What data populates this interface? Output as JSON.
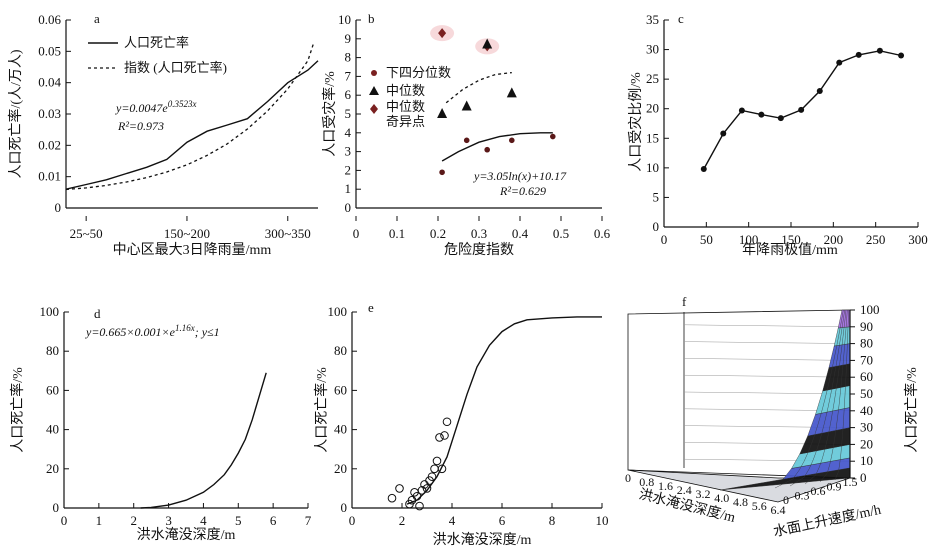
{
  "chart_data": [
    {
      "panel": "a",
      "type": "line",
      "xlabel": "中心区最大3日降雨量/mm",
      "ylabel": "人口死亡率/(人/万人)",
      "x_ticks": [
        "25~50",
        "150~200",
        "300~350"
      ],
      "x_tick_positions": [
        1,
        6,
        11
      ],
      "xlim": [
        0,
        12.5
      ],
      "ylim": [
        0,
        0.06
      ],
      "y_ticks": [
        0,
        0.01,
        0.02,
        0.03,
        0.04,
        0.05,
        0.06
      ],
      "series": [
        {
          "name": "人口死亡率",
          "style": "solid",
          "x": [
            0,
            1,
            2,
            3,
            4,
            5,
            6,
            7,
            8,
            9,
            10,
            11,
            12,
            12.5
          ],
          "y": [
            0.006,
            0.0075,
            0.009,
            0.011,
            0.013,
            0.0155,
            0.021,
            0.0245,
            0.0265,
            0.0285,
            0.034,
            0.04,
            0.044,
            0.047
          ]
        },
        {
          "name": "指数 (人口死亡率)",
          "style": "dashed",
          "x": [
            0,
            1,
            2,
            3,
            4,
            5,
            6,
            7,
            8,
            9,
            10,
            11,
            12,
            12.3
          ],
          "y": [
            0.0059,
            0.0064,
            0.0072,
            0.0083,
            0.0097,
            0.0115,
            0.0138,
            0.0168,
            0.0205,
            0.0252,
            0.031,
            0.038,
            0.047,
            0.053
          ]
        }
      ],
      "equation": "y=0.0047e",
      "equation_exp": "0.3523x",
      "r2": "R²=0.973"
    },
    {
      "panel": "b",
      "type": "scatter",
      "xlabel": "危险度指数",
      "ylabel": "人口受灾率/%",
      "xlim": [
        0,
        0.6
      ],
      "ylim": [
        0,
        10
      ],
      "x_ticks": [
        0,
        0.1,
        0.2,
        0.3,
        0.4,
        0.5,
        0.6
      ],
      "y_ticks": [
        0,
        1,
        2,
        3,
        4,
        5,
        6,
        7,
        8,
        9,
        10
      ],
      "legend": [
        "下四分位数",
        "中位数",
        "中位数",
        "奇异点"
      ],
      "lower_quartile": {
        "x": [
          0.21,
          0.27,
          0.32,
          0.38,
          0.48
        ],
        "y": [
          1.9,
          3.6,
          3.1,
          3.6,
          3.8
        ]
      },
      "median": {
        "x": [
          0.21,
          0.27,
          0.32,
          0.38
        ],
        "y": [
          5.0,
          5.4,
          8.7,
          6.1
        ]
      },
      "outliers": {
        "x": [
          0.21,
          0.32
        ],
        "y": [
          9.3,
          8.6
        ]
      },
      "fit_lower": {
        "x": [
          0.21,
          0.25,
          0.3,
          0.35,
          0.4,
          0.45,
          0.48
        ],
        "y": [
          2.5,
          3.0,
          3.5,
          3.8,
          3.95,
          4.0,
          4.0
        ]
      },
      "fit_median_dashed": {
        "x": [
          0.22,
          0.26,
          0.3,
          0.34,
          0.38
        ],
        "y": [
          5.6,
          6.3,
          6.8,
          7.1,
          7.2
        ]
      },
      "equation": "y=3.05ln(x)+10.17",
      "r2": "R²=0.629"
    },
    {
      "panel": "c",
      "type": "line",
      "xlabel": "年降雨极值/mm",
      "ylabel": "人口受灾比例/%",
      "xlim": [
        0,
        300
      ],
      "ylim": [
        0,
        35
      ],
      "x_ticks": [
        0,
        50,
        100,
        150,
        200,
        250,
        300
      ],
      "y_ticks": [
        0,
        5,
        10,
        15,
        20,
        25,
        30,
        35
      ],
      "x": [
        47,
        70,
        92,
        115,
        138,
        162,
        184,
        207,
        230,
        255,
        280
      ],
      "y": [
        9.8,
        15.8,
        19.7,
        19.0,
        18.4,
        19.8,
        23.0,
        27.8,
        29.1,
        29.8,
        29.0
      ]
    },
    {
      "panel": "d",
      "type": "line",
      "xlabel": "洪水淹没深度/m",
      "ylabel": "人口死亡率/%",
      "xlim": [
        0,
        7
      ],
      "ylim": [
        0,
        100
      ],
      "x_ticks": [
        0,
        1,
        2,
        3,
        4,
        5,
        6,
        7
      ],
      "y_ticks": [
        0,
        20,
        40,
        60,
        80,
        100
      ],
      "x": [
        2.2,
        2.5,
        3.0,
        3.5,
        4.0,
        4.3,
        4.6,
        4.8,
        5.0,
        5.2,
        5.4,
        5.6,
        5.8
      ],
      "y": [
        0,
        0.3,
        1.5,
        4,
        8,
        12,
        17,
        22,
        28,
        35,
        45,
        57,
        69
      ],
      "equation": "y=0.665×0.001×e",
      "equation_exp": "1.16x",
      "equation_tail": "; y≤1"
    },
    {
      "panel": "e",
      "type": "scatter",
      "xlabel": "洪水淹没深度/m",
      "ylabel": "人口死亡率/%",
      "xlim": [
        0,
        10
      ],
      "ylim": [
        0,
        100
      ],
      "x_ticks": [
        0,
        2,
        4,
        6,
        8,
        10
      ],
      "y_ticks": [
        0,
        20,
        40,
        60,
        80,
        100
      ],
      "points": {
        "x": [
          1.6,
          1.9,
          2.3,
          2.4,
          2.5,
          2.6,
          2.7,
          2.8,
          2.9,
          3.0,
          3.1,
          3.2,
          3.3,
          3.4,
          3.5,
          3.6,
          3.7,
          3.8
        ],
        "y": [
          5,
          10,
          2,
          4,
          8,
          6,
          1,
          9,
          12,
          10,
          14,
          16,
          20,
          24,
          36,
          20,
          37,
          44
        ]
      },
      "fit": {
        "x": [
          2.2,
          2.6,
          3.0,
          3.4,
          3.8,
          4.2,
          4.6,
          5.0,
          5.5,
          6.0,
          6.5,
          7.0,
          8.0,
          9.0,
          10.0
        ],
        "y": [
          2,
          4,
          9,
          16,
          26,
          42,
          58,
          72,
          83,
          90,
          94,
          96,
          97,
          97.5,
          97.5
        ]
      }
    },
    {
      "panel": "f",
      "type": "surface",
      "xlabel": "洪水淹没深度/m",
      "ylabel": "水面上升速度/m/h",
      "zlabel": "人口死亡率/%",
      "x_ticks": [
        "0",
        "0.8",
        "1.6",
        "2.4",
        "3.2",
        "4.0",
        "4.8",
        "5.6",
        "6.4"
      ],
      "y_ticks": [
        "0",
        "0.3",
        "0.6",
        "0.9",
        "1.5"
      ],
      "z_ticks": [
        0,
        10,
        20,
        30,
        40,
        50,
        60,
        70,
        80,
        90,
        100
      ],
      "zlim": [
        0,
        100
      ]
    }
  ],
  "colors": {
    "ink": "#111111",
    "outlier_pink": "#f4c9cc",
    "surface_blue": "#4455cc",
    "surface_cyan": "#66c8d8",
    "surface_purple": "#a06ce0",
    "surface_dark": "#101010"
  }
}
